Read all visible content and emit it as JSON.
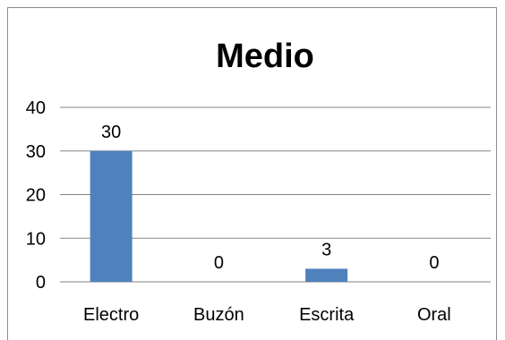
{
  "chart_data": {
    "type": "bar",
    "title": "Medio",
    "categories": [
      "Electro",
      "Buzón",
      "Escrita",
      "Oral"
    ],
    "values": [
      30,
      0,
      3,
      0
    ],
    "data_labels": [
      "30",
      "0",
      "3",
      "0"
    ],
    "ylim": [
      0,
      40
    ],
    "yticks": [
      "0",
      "10",
      "20",
      "30",
      "40"
    ],
    "xlabel": "",
    "ylabel": "",
    "grid": true,
    "legend": "none",
    "bar_color": "#4f81bd"
  }
}
